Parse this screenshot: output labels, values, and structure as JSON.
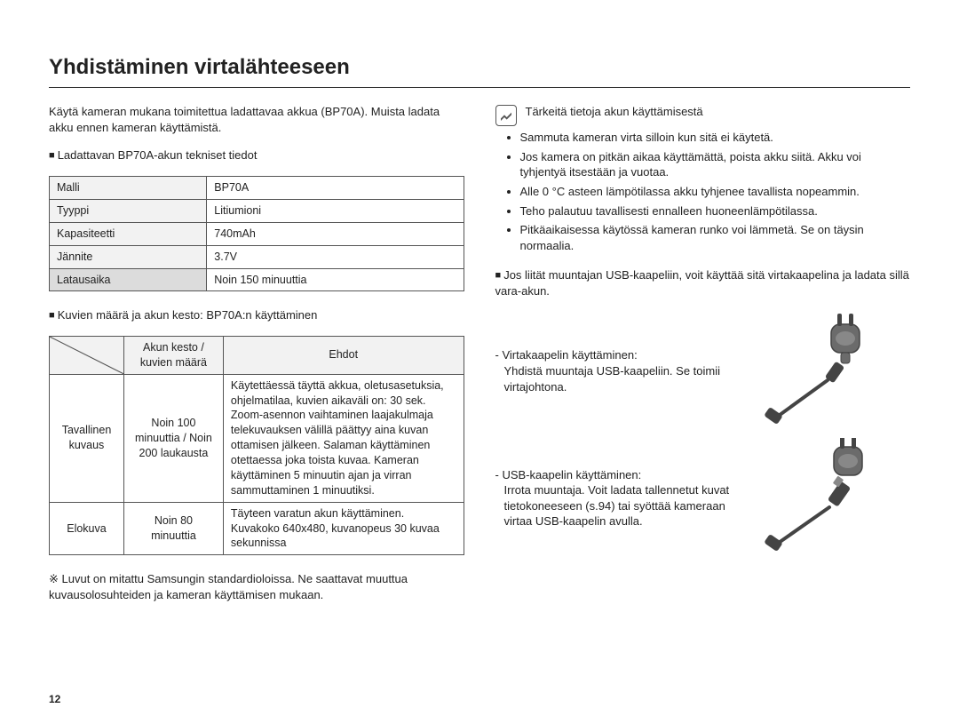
{
  "title": "Yhdistäminen virtalähteeseen",
  "pageNumber": "12",
  "left": {
    "intro": "Käytä kameran mukana toimitettua ladattavaa akkua (BP70A). Muista ladata akku ennen kameran käyttämistä.",
    "specHeading": "Ladattavan BP70A-akun tekniset tiedot",
    "specs": {
      "rows": [
        {
          "label": "Malli",
          "value": "BP70A",
          "labelGray": false
        },
        {
          "label": "Tyyppi",
          "value": "Litiumioni",
          "labelGray": false
        },
        {
          "label": "Kapasiteetti",
          "value": "740mAh",
          "labelGray": false
        },
        {
          "label": "Jännite",
          "value": "3.7V",
          "labelGray": false
        },
        {
          "label": "Latausaika",
          "value": "Noin 150 minuuttia",
          "labelGray": true
        }
      ]
    },
    "perfHeading": "Kuvien määrä ja akun kesto: BP70A:n käyttäminen",
    "perfTable": {
      "header": {
        "c2": "Akun kesto / kuvien määrä",
        "c3": "Ehdot"
      },
      "rows": [
        {
          "c1": "Tavallinen kuvaus",
          "c2": "Noin 100 minuuttia / Noin 200 laukausta",
          "c3": "Käytettäessä täyttä akkua, oletusasetuksia, ohjelmatilaa, kuvien aikaväli on: 30 sek. Zoom-asennon vaihtaminen laajakulmaja telekuvauksen välillä päättyy aina kuvan ottamisen jälkeen. Salaman käyttäminen otettaessa joka toista kuvaa. Kameran käyttäminen 5 minuutin ajan ja virran sammuttaminen 1 minuutiksi."
        },
        {
          "c1": "Elokuva",
          "c2": "Noin 80 minuuttia",
          "c3": "Täyteen varatun akun käyttäminen. Kuvakoko 640x480, kuvanopeus 30 kuvaa sekunnissa"
        }
      ]
    },
    "footnote": "※ Luvut on mitattu Samsungin standardioloissa. Ne saattavat muuttua kuvausolosuhteiden ja kameran käyttämisen mukaan."
  },
  "right": {
    "noteTitle": "Tärkeitä tietoja akun käyttämisestä",
    "noteBullets": [
      "Sammuta kameran virta silloin kun sitä ei käytetä.",
      "Jos kamera on pitkän aikaa käyttämättä, poista akku siitä. Akku voi tyhjentyä itsestään ja vuotaa.",
      "Alle 0 °C asteen lämpötilassa akku tyhjenee tavallista nopeammin.",
      "Teho palautuu tavallisesti ennalleen huoneenlämpötilassa.",
      "Pitkäaikaisessa käytössä kameran runko voi lämmetä. Se on täysin normaalia."
    ],
    "adapterHeading": "Jos liität muuntajan USB-kaapeliin, voit käyttää sitä virtakaapelina ja ladata sillä vara-akun.",
    "cable1": {
      "label": "- Virtakaapelin käyttäminen:",
      "desc": "Yhdistä muuntaja USB-kaapeliin. Se toimii virtajohtona."
    },
    "cable2": {
      "label": "- USB-kaapelin käyttäminen:",
      "desc": "Irrota muuntaja. Voit ladata tallennetut kuvat tietokoneeseen (s.94) tai syöttää kameraan virtaa USB-kaapelin avulla."
    }
  },
  "style": {
    "headerBg": "#f2f2f2",
    "grayCellBg": "#dcdcdc",
    "borderColor": "#555555",
    "textColor": "#222222",
    "iconFill": "#6b6b6b",
    "iconDark": "#444444"
  }
}
